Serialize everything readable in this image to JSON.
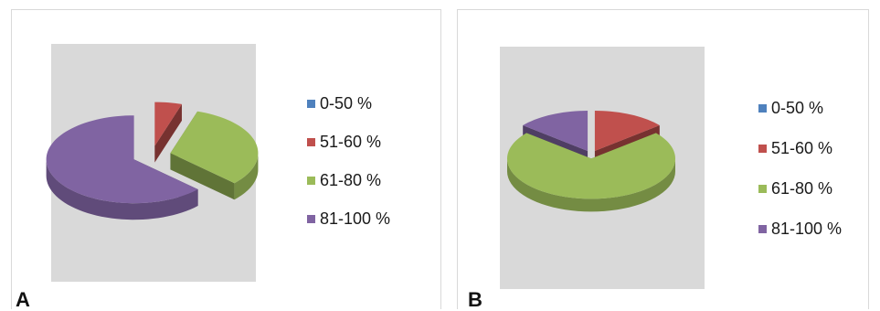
{
  "colors": {
    "0-50 %": "#4f81bd",
    "51-60 %": "#c0504d",
    "61-80 %": "#9bbb59",
    "81-100 %": "#8064a2",
    "plot_background": "#d9d9d9"
  },
  "chart_data": [
    {
      "type": "pie",
      "style": "3d-exploded",
      "panel_label": "A",
      "categories": [
        "0-50 %",
        "51-60 %",
        "61-80 %",
        "81-100 %"
      ],
      "values": [
        0,
        5,
        32,
        63
      ],
      "legend_position": "right"
    },
    {
      "type": "pie",
      "style": "3d-exploded",
      "panel_label": "B",
      "categories": [
        "0-50 %",
        "51-60 %",
        "61-80 %",
        "81-100 %"
      ],
      "values": [
        0,
        14,
        72,
        14
      ],
      "legend_position": "right"
    }
  ]
}
